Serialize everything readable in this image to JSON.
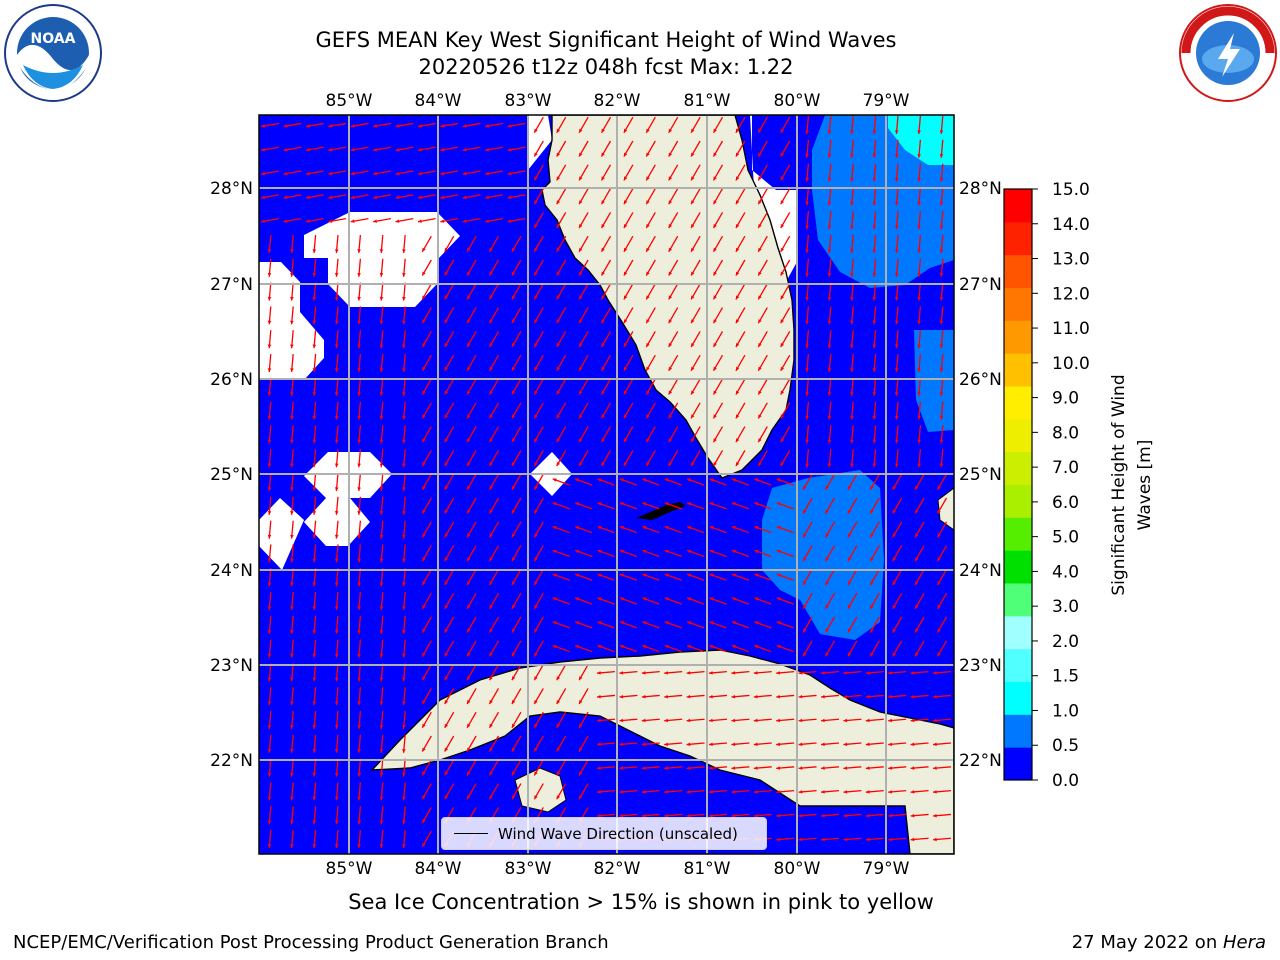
{
  "header": {
    "title_line1": "GEFS MEAN Key West Significant Height of Wind Waves",
    "title_line2": "20220526 t12z 048h fcst   Max: 1.22"
  },
  "logos": {
    "left": "NOAA",
    "left_ring_text": "NATIONAL OCEANIC AND ATMOSPHERIC ADMINISTRATION · U.S. DEPARTMENT OF COMMERCE",
    "right_ring_text": "NATIONAL WEATHER SERVICE"
  },
  "map": {
    "lon_labels": [
      "85°W",
      "84°W",
      "83°W",
      "82°W",
      "81°W",
      "80°W",
      "79°W"
    ],
    "lat_labels": [
      "28°N",
      "27°N",
      "26°N",
      "25°N",
      "24°N",
      "23°N",
      "22°N"
    ],
    "colors": {
      "ocean_low": "#0000ff",
      "ocean_mid": "#0078ff",
      "ocean_high": "#00ffff",
      "land": "#eeeedd",
      "grid": "#b0b0b0",
      "arrow": "#ff0000"
    },
    "legend_label": "Wind Wave Direction (unscaled)"
  },
  "colorbar": {
    "label": "Significant Height of Wind Waves [m]",
    "label_line1": "Significant Height of Wind",
    "label_line2": "Waves [m]",
    "ticks": [
      "0.0",
      "0.5",
      "1.0",
      "1.5",
      "2.0",
      "3.0",
      "4.0",
      "5.0",
      "6.0",
      "7.0",
      "8.0",
      "9.0",
      "10.0",
      "11.0",
      "12.0",
      "13.0",
      "14.0",
      "15.0"
    ],
    "colors": [
      "#0000ff",
      "#0078ff",
      "#00ffff",
      "#50ffff",
      "#a0ffff",
      "#50ff78",
      "#00e000",
      "#55ee00",
      "#aaee00",
      "#ccee00",
      "#eeee00",
      "#ffee00",
      "#ffc000",
      "#ff9900",
      "#ff7700",
      "#ff5500",
      "#ff2200",
      "#ff0000"
    ]
  },
  "notes": {
    "sea_ice": "Sea Ice Concentration > 15% is shown in pink to yellow",
    "footer_left": "NCEP/EMC/Verification Post Processing Product Generation Branch",
    "footer_right_prefix": "27 May 2022 on ",
    "footer_right_host": "Hera"
  }
}
